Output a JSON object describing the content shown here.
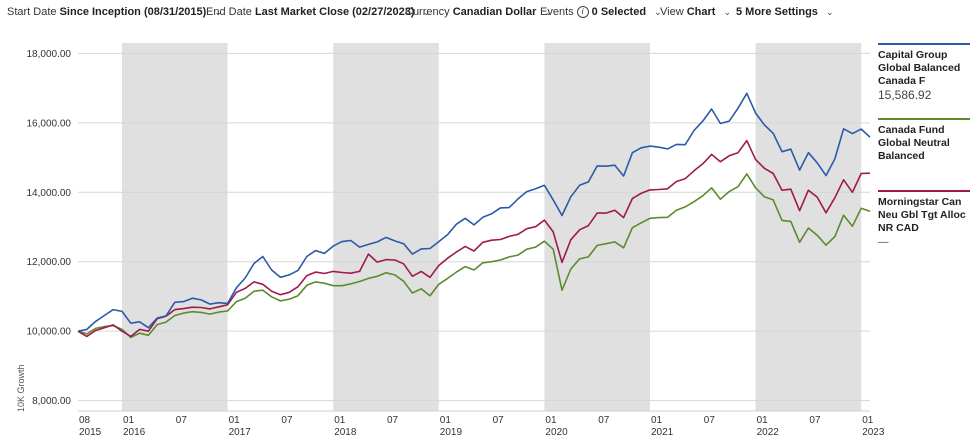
{
  "toolbar": {
    "start_date": {
      "label": "Start Date",
      "value": "Since Inception (08/31/2015)"
    },
    "end_date": {
      "label": "End Date",
      "value": "Last Market Close (02/27/2023)"
    },
    "currency": {
      "label": "Currency",
      "value": "Canadian Dollar"
    },
    "events": {
      "label": "Events",
      "value": "0 Selected",
      "icon": "info-icon"
    },
    "view": {
      "label": "View",
      "value": "Chart"
    },
    "settings": {
      "label": "",
      "value": "5 More Settings"
    }
  },
  "legend": [
    {
      "name": "Capital Group Global Balanced Canada F",
      "value": "15,586.92",
      "color": "#2c5aa8"
    },
    {
      "name": "Canada Fund Global Neutral Balanced",
      "value": "",
      "color": "#5a8c2d"
    },
    {
      "name": "Morningstar Can Neu Gbl Tgt Alloc NR CAD",
      "value": "—",
      "color": "#a01a4f"
    }
  ],
  "chart_data": {
    "type": "line",
    "ylabel": "10K Growth",
    "ylim": [
      7700,
      18300
    ],
    "yticks": [
      "18,000.00",
      "16,000.00",
      "14,000.00",
      "12,000.00",
      "10,000.00",
      "8,000.00"
    ],
    "ytick_values": [
      18000,
      16000,
      14000,
      12000,
      10000,
      8000
    ],
    "xticks": [
      {
        "m": "08",
        "y": "2015"
      },
      {
        "m": "01",
        "y": "2016"
      },
      {
        "m": "07",
        "y": ""
      },
      {
        "m": "01",
        "y": "2017"
      },
      {
        "m": "07",
        "y": ""
      },
      {
        "m": "01",
        "y": "2018"
      },
      {
        "m": "07",
        "y": ""
      },
      {
        "m": "01",
        "y": "2019"
      },
      {
        "m": "07",
        "y": ""
      },
      {
        "m": "01",
        "y": "2020"
      },
      {
        "m": "07",
        "y": ""
      },
      {
        "m": "01",
        "y": "2021"
      },
      {
        "m": "07",
        "y": ""
      },
      {
        "m": "01",
        "y": "2022"
      },
      {
        "m": "07",
        "y": ""
      },
      {
        "m": "01",
        "y": "2023"
      }
    ],
    "xtick_values": [
      "2015-08",
      "2016-01",
      "2016-07",
      "2017-01",
      "2017-07",
      "2018-01",
      "2018-07",
      "2019-01",
      "2019-07",
      "2020-01",
      "2020-07",
      "2021-01",
      "2021-07",
      "2022-01",
      "2022-07",
      "2023-01"
    ],
    "x_start": "2015-08",
    "x_end": "2023-02",
    "shaded_years": [
      "2016",
      "2018",
      "2020",
      "2022"
    ],
    "shade_color": "#e0e0e0",
    "grid": true,
    "x": [
      "2015-08",
      "2015-09",
      "2015-10",
      "2015-11",
      "2015-12",
      "2016-01",
      "2016-02",
      "2016-03",
      "2016-04",
      "2016-05",
      "2016-06",
      "2016-07",
      "2016-08",
      "2016-09",
      "2016-10",
      "2016-11",
      "2016-12",
      "2017-01",
      "2017-02",
      "2017-03",
      "2017-04",
      "2017-05",
      "2017-06",
      "2017-07",
      "2017-08",
      "2017-09",
      "2017-10",
      "2017-11",
      "2017-12",
      "2018-01",
      "2018-02",
      "2018-03",
      "2018-04",
      "2018-05",
      "2018-06",
      "2018-07",
      "2018-08",
      "2018-09",
      "2018-10",
      "2018-11",
      "2018-12",
      "2019-01",
      "2019-02",
      "2019-03",
      "2019-04",
      "2019-05",
      "2019-06",
      "2019-07",
      "2019-08",
      "2019-09",
      "2019-10",
      "2019-11",
      "2019-12",
      "2020-01",
      "2020-02",
      "2020-03",
      "2020-04",
      "2020-05",
      "2020-06",
      "2020-07",
      "2020-08",
      "2020-09",
      "2020-10",
      "2020-11",
      "2020-12",
      "2021-01",
      "2021-02",
      "2021-03",
      "2021-04",
      "2021-05",
      "2021-06",
      "2021-07",
      "2021-08",
      "2021-09",
      "2021-10",
      "2021-11",
      "2021-12",
      "2022-01",
      "2022-02",
      "2022-03",
      "2022-04",
      "2022-05",
      "2022-06",
      "2022-07",
      "2022-08",
      "2022-09",
      "2022-10",
      "2022-11",
      "2022-12",
      "2023-01",
      "2023-02"
    ],
    "series": [
      {
        "name": "Capital Group Global Balanced Canada F",
        "color": "#2c5aa8",
        "values": [
          10000,
          10050,
          10280,
          10450,
          10620,
          10570,
          10230,
          10270,
          10100,
          10380,
          10440,
          10830,
          10850,
          10950,
          10900,
          10780,
          10820,
          10800,
          11250,
          11530,
          11950,
          12150,
          11760,
          11550,
          11620,
          11750,
          12150,
          12320,
          12240,
          12450,
          12580,
          12610,
          12420,
          12500,
          12570,
          12700,
          12600,
          12520,
          12220,
          12370,
          12380,
          12580,
          12780,
          13080,
          13250,
          13060,
          13280,
          13380,
          13550,
          13560,
          13810,
          14020,
          14100,
          14200,
          13780,
          13330,
          13870,
          14200,
          14300,
          14760,
          14750,
          14780,
          14470,
          15140,
          15280,
          15330,
          15300,
          15250,
          15380,
          15370,
          15780,
          16050,
          16400,
          15980,
          16050,
          16420,
          16850,
          16280,
          15940,
          15700,
          15170,
          15240,
          14640,
          15140,
          14850,
          14480,
          14960,
          15830,
          15690,
          15820,
          15587
        ]
      },
      {
        "name": "Canada Fund Global Neutral Balanced",
        "color": "#5a8c2d",
        "values": [
          10000,
          9920,
          10080,
          10130,
          10160,
          10050,
          9820,
          9940,
          9880,
          10190,
          10260,
          10450,
          10520,
          10560,
          10540,
          10490,
          10550,
          10580,
          10850,
          10950,
          11150,
          11180,
          10990,
          10870,
          10920,
          11020,
          11320,
          11420,
          11380,
          11310,
          11310,
          11360,
          11430,
          11520,
          11580,
          11680,
          11620,
          11440,
          11100,
          11220,
          11020,
          11350,
          11520,
          11700,
          11860,
          11760,
          11970,
          12000,
          12050,
          12140,
          12190,
          12360,
          12420,
          12590,
          12360,
          11180,
          11790,
          12080,
          12140,
          12470,
          12520,
          12570,
          12400,
          12980,
          13120,
          13250,
          13270,
          13280,
          13480,
          13580,
          13730,
          13900,
          14130,
          13800,
          14020,
          14160,
          14530,
          14130,
          13870,
          13780,
          13190,
          13160,
          12560,
          12970,
          12760,
          12480,
          12720,
          13340,
          13020,
          13540,
          13450
        ]
      },
      {
        "name": "Morningstar Can Neu Gbl Tgt Alloc NR CAD",
        "color": "#a01a4f",
        "values": [
          10000,
          9850,
          10020,
          10100,
          10180,
          10000,
          9850,
          10050,
          10000,
          10360,
          10430,
          10620,
          10650,
          10690,
          10680,
          10640,
          10700,
          10760,
          11120,
          11230,
          11420,
          11350,
          11150,
          11050,
          11120,
          11280,
          11600,
          11700,
          11660,
          11720,
          11690,
          11670,
          11720,
          12220,
          11990,
          12060,
          12050,
          11940,
          11580,
          11720,
          11550,
          11890,
          12100,
          12280,
          12440,
          12310,
          12560,
          12620,
          12640,
          12730,
          12790,
          12950,
          13010,
          13200,
          12860,
          11980,
          12630,
          12920,
          13040,
          13400,
          13400,
          13480,
          13270,
          13820,
          13970,
          14070,
          14080,
          14100,
          14310,
          14390,
          14620,
          14820,
          15090,
          14880,
          15050,
          15140,
          15490,
          14940,
          14690,
          14540,
          14060,
          14090,
          13470,
          14060,
          13860,
          13410,
          13840,
          14360,
          14000,
          14540,
          14550
        ]
      }
    ]
  }
}
